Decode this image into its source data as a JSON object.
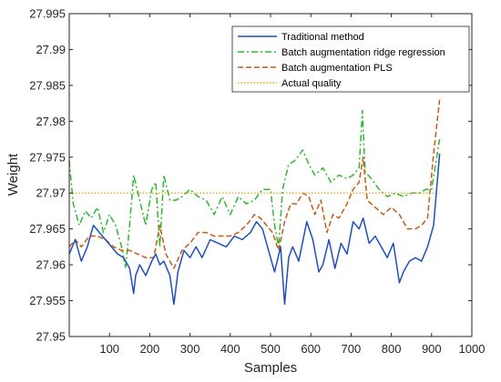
{
  "chart_data": {
    "type": "line",
    "title": "",
    "xlabel": "Samples",
    "ylabel": "Weight",
    "xlim": [
      0,
      1000
    ],
    "ylim": [
      27.95,
      27.995
    ],
    "xticks": [
      "100",
      "200",
      "300",
      "400",
      "500",
      "600",
      "700",
      "800",
      "900",
      "1000"
    ],
    "yticks": [
      "27.95",
      "27.955",
      "27.96",
      "27.965",
      "27.97",
      "27.975",
      "27.98",
      "27.985",
      "27.99",
      "27.995"
    ],
    "grid": false,
    "legend_position": "top-right",
    "series": [
      {
        "name": "Traditional method",
        "color": "#1f4fbf",
        "style": "solid",
        "x": [
          0,
          15,
          30,
          45,
          60,
          75,
          90,
          105,
          120,
          135,
          150,
          160,
          165,
          175,
          190,
          205,
          215,
          225,
          235,
          250,
          260,
          270,
          285,
          300,
          315,
          330,
          350,
          370,
          390,
          410,
          430,
          450,
          465,
          480,
          495,
          510,
          525,
          535,
          545,
          555,
          570,
          590,
          605,
          620,
          630,
          645,
          660,
          675,
          690,
          705,
          720,
          730,
          745,
          760,
          775,
          790,
          805,
          820,
          830,
          845,
          860,
          875,
          890,
          905,
          920
        ],
        "y": [
          27.9615,
          27.9635,
          27.9605,
          27.9625,
          27.9655,
          27.9645,
          27.9635,
          27.9625,
          27.9615,
          27.961,
          27.9595,
          27.956,
          27.9585,
          27.96,
          27.9585,
          27.9605,
          27.9615,
          27.96,
          27.9605,
          27.9585,
          27.9545,
          27.959,
          27.962,
          27.961,
          27.9625,
          27.961,
          27.9635,
          27.963,
          27.9625,
          27.964,
          27.9635,
          27.9645,
          27.966,
          27.965,
          27.962,
          27.959,
          27.9625,
          27.9545,
          27.961,
          27.9625,
          27.9605,
          27.966,
          27.9635,
          27.959,
          27.96,
          27.9635,
          27.9595,
          27.963,
          27.9615,
          27.966,
          27.965,
          27.9665,
          27.963,
          27.964,
          27.9625,
          27.961,
          27.963,
          27.9575,
          27.959,
          27.9605,
          27.961,
          27.9605,
          27.9625,
          27.9655,
          27.9755
        ]
      },
      {
        "name": "Batch augmentation ridge regression",
        "color": "#2db82d",
        "style": "dashdot",
        "x": [
          0,
          10,
          25,
          40,
          55,
          70,
          85,
          100,
          115,
          130,
          140,
          150,
          160,
          175,
          190,
          205,
          215,
          225,
          235,
          250,
          265,
          280,
          300,
          320,
          340,
          360,
          380,
          400,
          420,
          440,
          460,
          480,
          500,
          510,
          520,
          530,
          545,
          560,
          580,
          595,
          610,
          630,
          650,
          670,
          690,
          705,
          720,
          728,
          735,
          750,
          770,
          790,
          810,
          830,
          850,
          870,
          885,
          900,
          920
        ],
        "y": [
          27.9745,
          27.9685,
          27.9655,
          27.9675,
          27.9665,
          27.968,
          27.9645,
          27.967,
          27.9655,
          27.9625,
          27.9595,
          27.9655,
          27.9725,
          27.969,
          27.9655,
          27.9705,
          27.9715,
          27.9625,
          27.9725,
          27.969,
          27.969,
          27.9695,
          27.9705,
          27.9695,
          27.969,
          27.967,
          27.9695,
          27.967,
          27.9695,
          27.9685,
          27.969,
          27.9705,
          27.9705,
          27.9655,
          27.9625,
          27.9705,
          27.974,
          27.9745,
          27.976,
          27.974,
          27.9725,
          27.9735,
          27.9715,
          27.9725,
          27.972,
          27.9725,
          27.9735,
          27.9815,
          27.973,
          27.972,
          27.9705,
          27.9695,
          27.97,
          27.9695,
          27.97,
          27.97,
          27.9705,
          27.9705,
          27.9775
        ]
      },
      {
        "name": "Batch augmentation PLS",
        "color": "#c85a14",
        "style": "dashed",
        "x": [
          0,
          15,
          30,
          50,
          70,
          90,
          110,
          130,
          150,
          170,
          190,
          210,
          225,
          240,
          260,
          280,
          300,
          320,
          340,
          360,
          380,
          400,
          420,
          440,
          460,
          475,
          490,
          505,
          520,
          535,
          550,
          565,
          580,
          595,
          610,
          625,
          640,
          655,
          670,
          690,
          705,
          720,
          730,
          740,
          760,
          780,
          800,
          820,
          840,
          860,
          875,
          890,
          905,
          920
        ],
        "y": [
          27.9625,
          27.9635,
          27.9625,
          27.964,
          27.964,
          27.9635,
          27.9625,
          27.962,
          27.962,
          27.9615,
          27.961,
          27.961,
          27.9655,
          27.9615,
          27.9595,
          27.962,
          27.963,
          27.9645,
          27.9645,
          27.964,
          27.964,
          27.964,
          27.9645,
          27.9655,
          27.967,
          27.9665,
          27.9655,
          27.9645,
          27.962,
          27.966,
          27.9685,
          27.9685,
          27.97,
          27.9695,
          27.967,
          27.969,
          27.9645,
          27.967,
          27.9665,
          27.9685,
          27.9705,
          27.9715,
          27.975,
          27.969,
          27.968,
          27.967,
          27.968,
          27.967,
          27.965,
          27.965,
          27.9655,
          27.9665,
          27.9755,
          27.983
        ]
      },
      {
        "name": "Actual quality",
        "color": "#e0a800",
        "style": "dotted",
        "x": [
          0,
          920
        ],
        "y": [
          27.97,
          27.97
        ]
      }
    ]
  }
}
